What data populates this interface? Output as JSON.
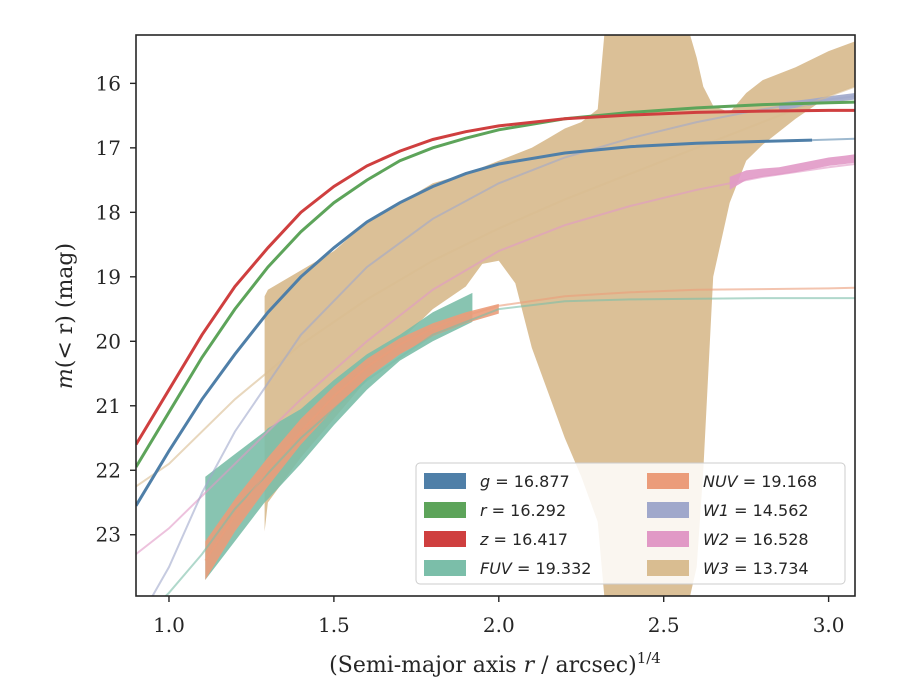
{
  "chart_data": {
    "type": "line",
    "xlabel_prefix": "(Semi-major axis ",
    "xlabel_var": "r",
    "xlabel_mid": " / arcsec)",
    "xlabel_sup": "1/4",
    "ylabel_prefix": "m",
    "ylabel_var": "(< r)",
    "ylabel_suffix": " (mag)",
    "xlim": [
      0.9,
      3.08
    ],
    "ylim": [
      23.95,
      15.25
    ],
    "y_inverted": true,
    "grid": false,
    "legend_placement": "lower-right",
    "x_ticks": [
      {
        "v": 1.0,
        "label": "1.0"
      },
      {
        "v": 1.5,
        "label": "1.5"
      },
      {
        "v": 2.0,
        "label": "2.0"
      },
      {
        "v": 2.5,
        "label": "2.5"
      },
      {
        "v": 3.0,
        "label": "3.0"
      }
    ],
    "y_ticks": [
      {
        "v": 16,
        "label": "16"
      },
      {
        "v": 17,
        "label": "17"
      },
      {
        "v": 18,
        "label": "18"
      },
      {
        "v": 19,
        "label": "19"
      },
      {
        "v": 20,
        "label": "20"
      },
      {
        "v": 21,
        "label": "21"
      },
      {
        "v": 22,
        "label": "22"
      },
      {
        "v": 23,
        "label": "23"
      }
    ],
    "series": [
      {
        "key": "W3",
        "band": "W3",
        "value": "13.734",
        "color": "#d9bd91",
        "model_x": [
          0.9,
          1.0,
          1.2,
          1.4,
          1.6,
          1.8,
          2.0,
          2.2,
          2.4,
          2.6,
          2.8,
          3.0,
          3.08
        ],
        "model_y": [
          22.25,
          21.9,
          20.9,
          20.05,
          19.35,
          18.75,
          18.25,
          17.8,
          17.4,
          17.0,
          16.6,
          16.2,
          16.05
        ],
        "band_x": [
          1.29,
          1.3,
          1.4,
          1.5,
          1.6,
          1.7,
          1.8,
          1.9,
          1.95,
          2.0,
          2.05,
          2.1,
          2.15,
          2.2,
          2.25,
          2.3,
          2.32,
          2.35,
          2.4,
          2.5,
          2.55,
          2.58,
          2.6,
          2.62,
          2.65,
          2.7,
          2.75,
          2.8,
          2.9,
          3.0,
          3.08
        ],
        "band_upper": [
          19.3,
          19.2,
          18.9,
          18.6,
          18.15,
          17.85,
          17.55,
          17.4,
          17.3,
          17.2,
          17.1,
          17.0,
          16.85,
          16.7,
          16.6,
          16.4,
          15.25,
          15.25,
          15.25,
          15.25,
          15.25,
          15.25,
          15.6,
          16.05,
          16.35,
          16.45,
          16.15,
          15.95,
          15.75,
          15.5,
          15.35
        ],
        "band_lower": [
          22.95,
          22.5,
          21.8,
          21.2,
          20.6,
          20.0,
          19.5,
          19.15,
          18.8,
          18.75,
          19.1,
          20.1,
          20.8,
          21.5,
          22.1,
          22.8,
          23.95,
          23.95,
          23.95,
          23.95,
          23.95,
          23.95,
          23.5,
          22.0,
          19.0,
          17.85,
          17.2,
          16.95,
          16.55,
          16.2,
          16.05
        ]
      },
      {
        "key": "W2",
        "band": "W2",
        "value": "16.528",
        "color": "#e199c6",
        "model_x": [
          0.9,
          1.0,
          1.2,
          1.4,
          1.6,
          1.8,
          2.0,
          2.2,
          2.4,
          2.6,
          2.8,
          3.0,
          3.08
        ],
        "model_y": [
          23.3,
          22.9,
          21.9,
          20.9,
          20.0,
          19.2,
          18.6,
          18.2,
          17.9,
          17.65,
          17.45,
          17.3,
          17.25
        ],
        "band_x": [
          2.7,
          2.75,
          2.8,
          2.85,
          2.9,
          2.95,
          3.0,
          3.05,
          3.08
        ],
        "band_upper": [
          17.45,
          17.35,
          17.32,
          17.3,
          17.25,
          17.2,
          17.15,
          17.12,
          17.1
        ],
        "band_lower": [
          17.65,
          17.5,
          17.45,
          17.42,
          17.38,
          17.33,
          17.28,
          17.25,
          17.23
        ]
      },
      {
        "key": "W1",
        "band": "W1",
        "value": "14.562",
        "color": "#a0a8cb",
        "model_x": [
          0.9,
          1.0,
          1.1,
          1.2,
          1.4,
          1.6,
          1.8,
          2.0,
          2.2,
          2.4,
          2.6,
          2.8,
          3.0,
          3.08
        ],
        "model_y": [
          24.4,
          23.5,
          22.35,
          21.4,
          19.9,
          18.85,
          18.1,
          17.55,
          17.15,
          16.85,
          16.6,
          16.4,
          16.25,
          16.2
        ],
        "band_x": [
          2.85,
          2.9,
          2.95,
          3.0,
          3.05,
          3.08
        ],
        "band_upper": [
          16.3,
          16.27,
          16.24,
          16.2,
          16.17,
          16.15
        ],
        "band_lower": [
          16.42,
          16.38,
          16.34,
          16.3,
          16.27,
          16.25
        ]
      },
      {
        "key": "FUV",
        "band": "FUV",
        "value": "19.332",
        "color": "#7bbea9",
        "model_x": [
          0.9,
          1.0,
          1.1,
          1.2,
          1.4,
          1.6,
          1.8,
          2.0,
          2.2,
          2.4,
          2.6,
          2.8,
          3.0,
          3.08
        ],
        "model_y": [
          24.4,
          23.9,
          23.3,
          22.6,
          21.5,
          20.6,
          19.9,
          19.5,
          19.38,
          19.35,
          19.34,
          19.33,
          19.33,
          19.33
        ],
        "band_x": [
          1.11,
          1.2,
          1.29,
          1.3,
          1.4,
          1.5,
          1.6,
          1.7,
          1.8,
          1.92
        ],
        "band_upper": [
          22.1,
          21.75,
          21.4,
          21.35,
          21.05,
          20.6,
          20.2,
          19.9,
          19.55,
          19.25
        ],
        "band_lower": [
          23.7,
          23.1,
          22.5,
          22.45,
          21.9,
          21.3,
          20.75,
          20.3,
          20.0,
          19.7
        ]
      },
      {
        "key": "NUV",
        "band": "NUV",
        "value": "19.168",
        "color": "#eb9c7a",
        "model_x": [
          1.11,
          1.2,
          1.3,
          1.4,
          1.5,
          1.6,
          1.7,
          1.8,
          1.9,
          2.0,
          2.2,
          2.4,
          2.6,
          2.8,
          3.0,
          3.08
        ],
        "model_y": [
          23.4,
          22.7,
          22.0,
          21.4,
          20.85,
          20.4,
          20.05,
          19.8,
          19.6,
          19.45,
          19.3,
          19.24,
          19.2,
          19.19,
          19.18,
          19.17
        ],
        "band_x": [
          1.11,
          1.2,
          1.3,
          1.4,
          1.5,
          1.6,
          1.7,
          1.8,
          1.9,
          2.0
        ],
        "band_upper": [
          23.1,
          22.45,
          21.8,
          21.2,
          20.7,
          20.27,
          19.95,
          19.72,
          19.55,
          19.42
        ],
        "band_lower": [
          23.7,
          22.95,
          22.25,
          21.6,
          21.05,
          20.57,
          20.2,
          19.92,
          19.72,
          19.57
        ]
      },
      {
        "key": "g",
        "band": "g",
        "value": "16.877",
        "color": "#4f7fa8",
        "model_x": [
          0.9,
          1.0,
          1.1,
          1.2,
          1.3,
          1.4,
          1.5,
          1.6,
          1.7,
          1.8,
          1.9,
          2.0,
          2.2,
          2.4,
          2.6,
          2.8,
          2.95
        ],
        "model_y": [
          22.55,
          21.7,
          20.9,
          20.2,
          19.55,
          19.0,
          18.55,
          18.15,
          17.85,
          17.6,
          17.4,
          17.25,
          17.08,
          16.98,
          16.93,
          16.9,
          16.88
        ],
        "ext_x": [
          2.95,
          3.08
        ],
        "ext_y": [
          16.88,
          16.86
        ]
      },
      {
        "key": "r",
        "band": "r",
        "value": "16.292",
        "color": "#5da45a",
        "model_x": [
          0.9,
          1.0,
          1.1,
          1.2,
          1.3,
          1.4,
          1.5,
          1.6,
          1.7,
          1.8,
          1.9,
          2.0,
          2.2,
          2.4,
          2.6,
          2.8,
          3.0,
          3.08
        ],
        "model_y": [
          21.95,
          21.1,
          20.25,
          19.5,
          18.85,
          18.3,
          17.85,
          17.5,
          17.2,
          17.0,
          16.85,
          16.72,
          16.55,
          16.45,
          16.38,
          16.33,
          16.3,
          16.29
        ]
      },
      {
        "key": "z",
        "band": "z",
        "value": "16.417",
        "color": "#cf3f3f",
        "model_x": [
          0.9,
          1.0,
          1.1,
          1.2,
          1.3,
          1.4,
          1.5,
          1.6,
          1.7,
          1.8,
          1.9,
          2.0,
          2.2,
          2.4,
          2.6,
          2.8,
          3.0,
          3.08
        ],
        "model_y": [
          21.6,
          20.75,
          19.9,
          19.15,
          18.55,
          18.0,
          17.6,
          17.28,
          17.05,
          16.87,
          16.75,
          16.66,
          16.55,
          16.49,
          16.45,
          16.43,
          16.42,
          16.42
        ]
      }
    ],
    "legend_order": [
      "g",
      "r",
      "z",
      "FUV",
      "NUV",
      "W1",
      "W2",
      "W3"
    ]
  }
}
